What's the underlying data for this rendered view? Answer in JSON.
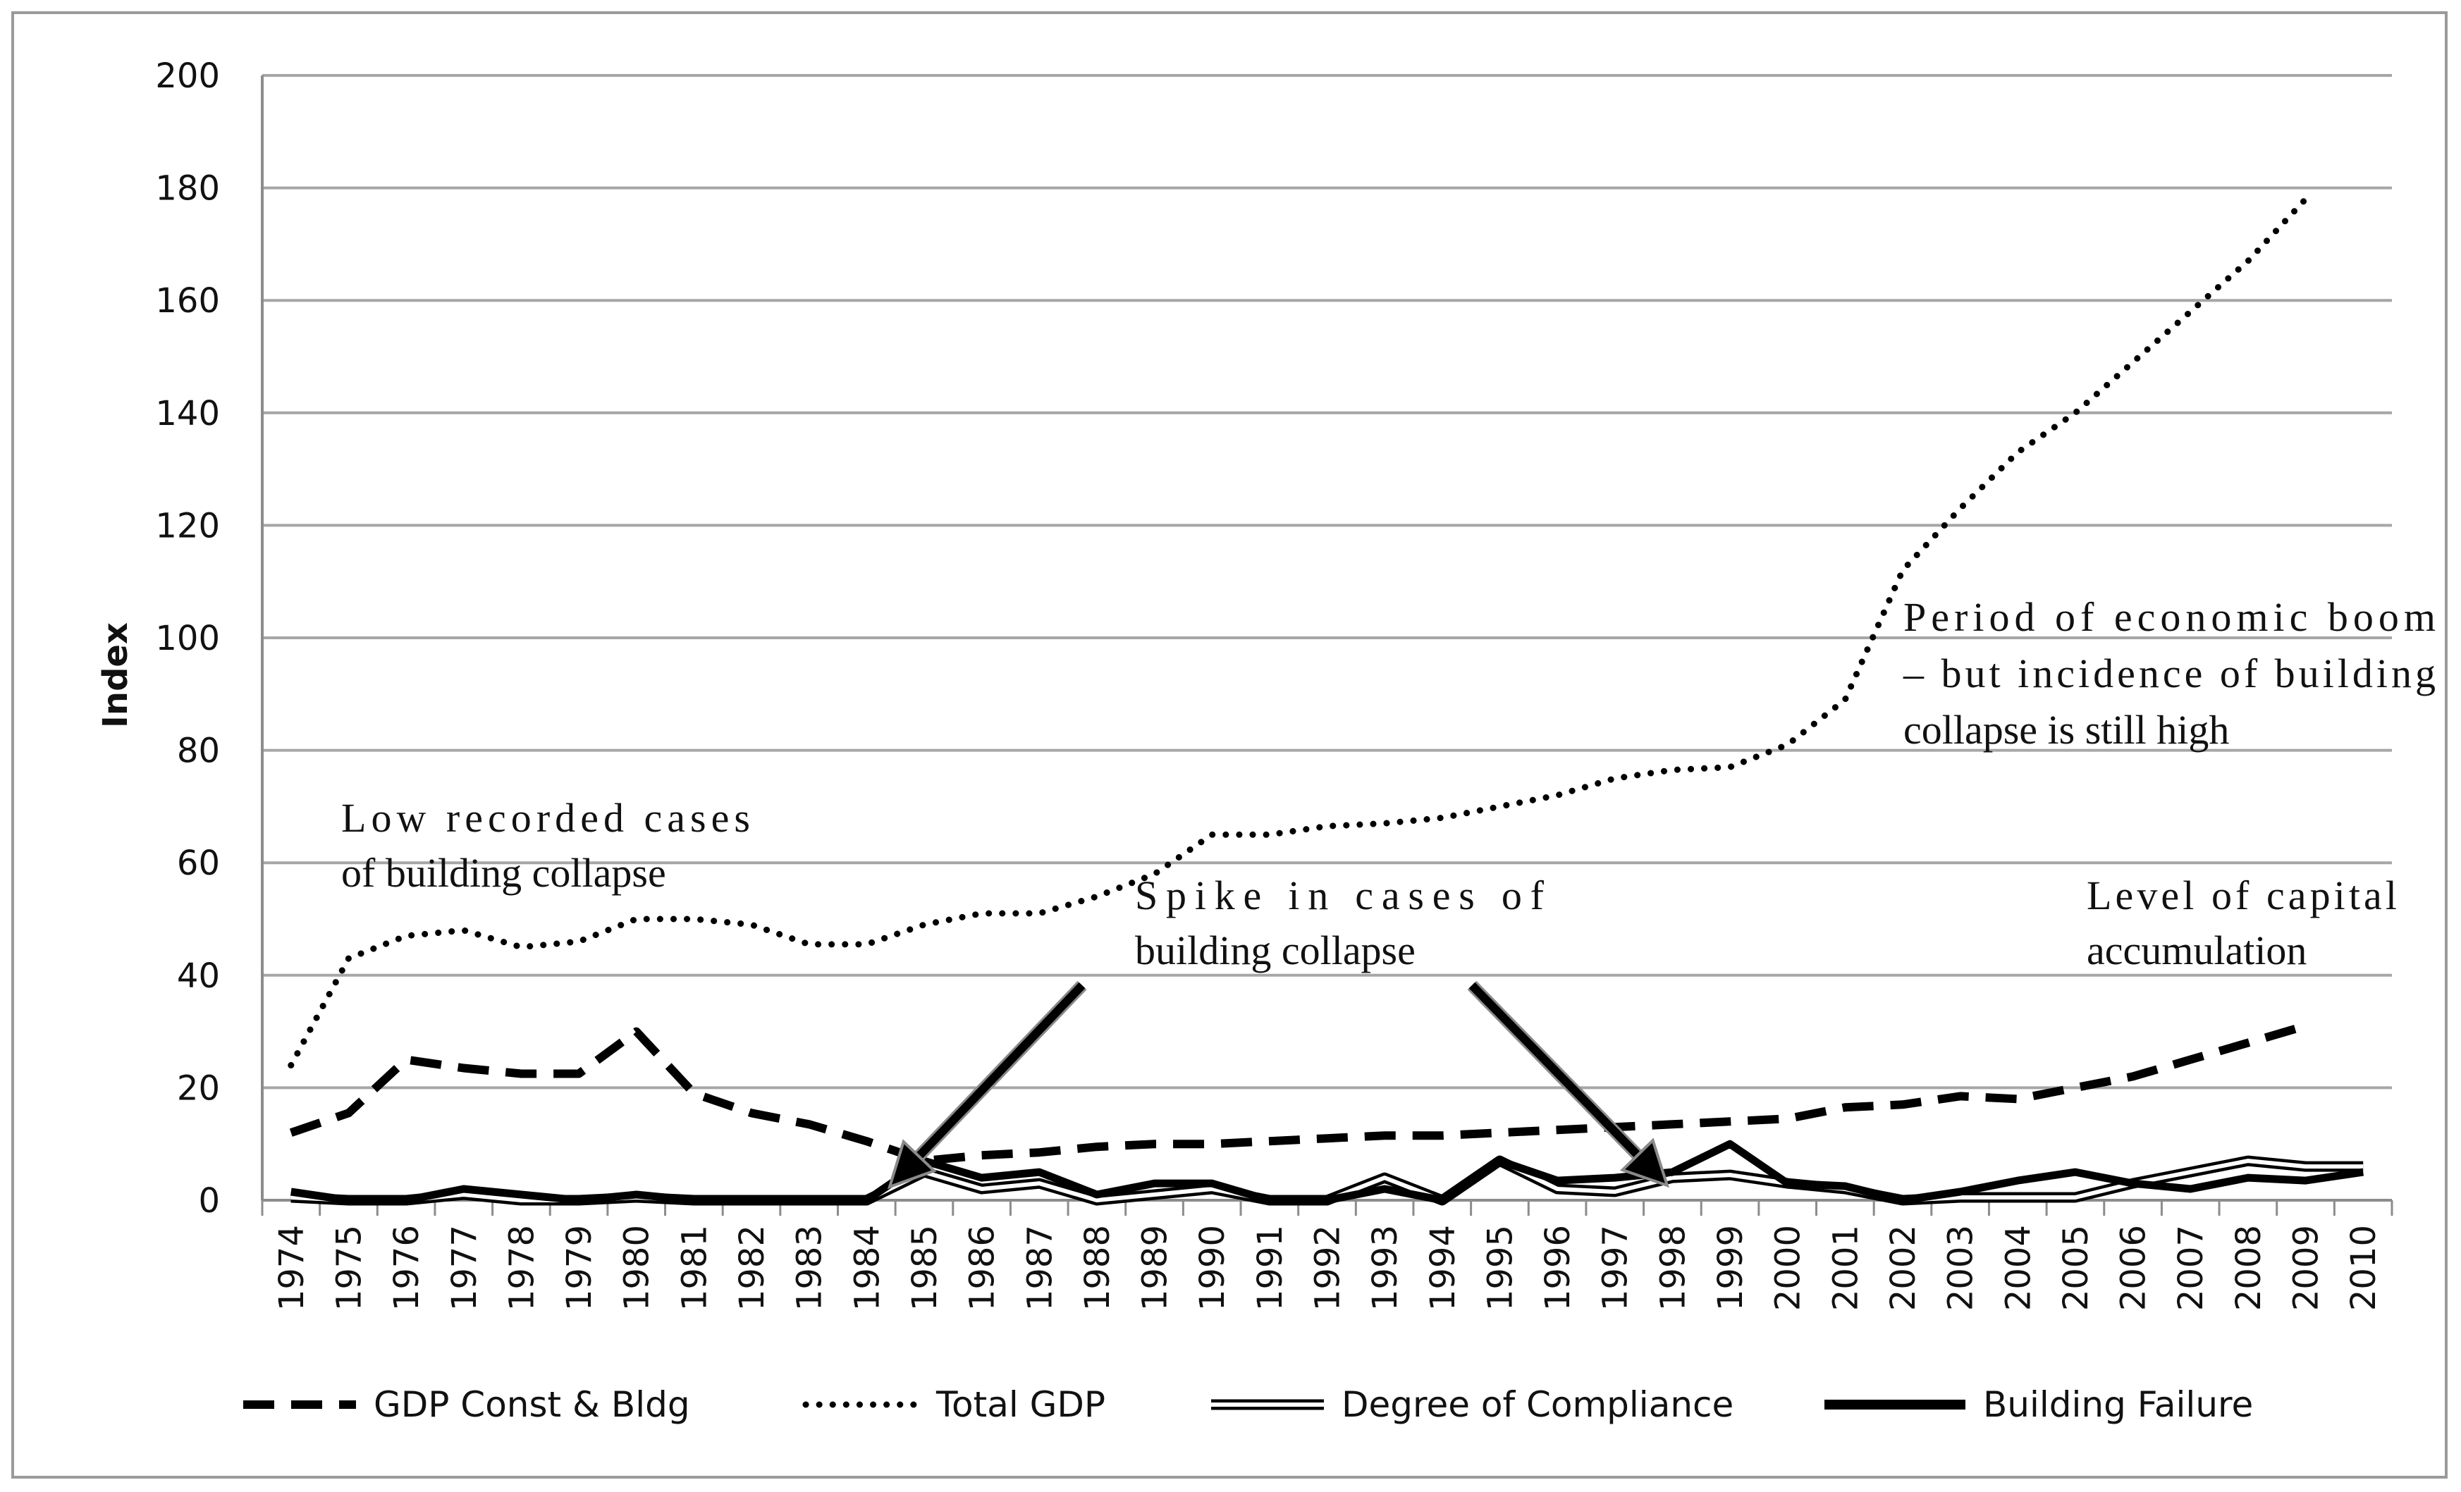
{
  "chart_data": {
    "type": "line",
    "title": "",
    "xlabel": "",
    "ylabel": "Index",
    "ylim": [
      0,
      200
    ],
    "yticks": [
      0,
      20,
      40,
      60,
      80,
      100,
      120,
      140,
      160,
      180,
      200
    ],
    "grid": true,
    "categories": [
      "1974",
      "1975",
      "1976",
      "1977",
      "1978",
      "1979",
      "1980",
      "1981",
      "1982",
      "1983",
      "1984",
      "1985",
      "1986",
      "1987",
      "1988",
      "1989",
      "1990",
      "1991",
      "1992",
      "1993",
      "1994",
      "1995",
      "1996",
      "1997",
      "1998",
      "1999",
      "2000",
      "2001",
      "2002",
      "2003",
      "2004",
      "2005",
      "2006",
      "2007",
      "2008",
      "2009",
      "2010"
    ],
    "series": [
      {
        "name": "GDP Const & Bldg",
        "style": "dashed",
        "values": [
          12,
          15.5,
          25,
          23.5,
          22.5,
          22.5,
          30,
          19,
          15.5,
          13.5,
          10.5,
          7,
          8,
          8.5,
          9.5,
          10,
          10,
          10.5,
          11,
          11.5,
          11.5,
          12,
          12.5,
          13,
          13.5,
          14,
          14.5,
          16.5,
          17,
          18.5,
          18,
          20,
          22,
          25,
          28,
          31,
          null
        ]
      },
      {
        "name": "Total GDP",
        "style": "dotted",
        "values": [
          24,
          43,
          47,
          48,
          45,
          46,
          50,
          50,
          49,
          45.5,
          45.5,
          49,
          51,
          51,
          54,
          58,
          65,
          65,
          66.5,
          67,
          68,
          70,
          72,
          75,
          76.5,
          77,
          81,
          89,
          112,
          123,
          133,
          140,
          149,
          158,
          167,
          178,
          null
        ]
      },
      {
        "name": "Degree of Compliance",
        "style": "double",
        "values": [
          0.5,
          0,
          0,
          1,
          0,
          0,
          0.5,
          0,
          0,
          0,
          0,
          5,
          2,
          3,
          0,
          1,
          2,
          0,
          0,
          4,
          0,
          7,
          2,
          1.5,
          4,
          4.5,
          3,
          2,
          0,
          0.5,
          0.5,
          0.5,
          3,
          5,
          7,
          6,
          6
        ]
      },
      {
        "name": "Building Failure",
        "style": "thick",
        "values": [
          1.5,
          0,
          0,
          2,
          1,
          0,
          1,
          0,
          0,
          0,
          0,
          7,
          4,
          5,
          1,
          3,
          3,
          0,
          0,
          2,
          0,
          7,
          3.5,
          4,
          5,
          10,
          3,
          2.5,
          0,
          1.5,
          3.5,
          5,
          3,
          2,
          4,
          3.5,
          5
        ]
      }
    ],
    "annotations": [
      {
        "id": "low-cases",
        "lines": [
          "Low recorded cases",
          "of building collapse"
        ]
      },
      {
        "id": "spike",
        "lines": [
          "Spike in cases of",
          "building collapse"
        ]
      },
      {
        "id": "boom",
        "lines": [
          "Period of economic boom",
          "– but incidence of building",
          "collapse is still high"
        ]
      },
      {
        "id": "capital",
        "lines": [
          "Level of capital",
          "accumulation"
        ]
      }
    ],
    "legend_position": "bottom"
  },
  "colors": {
    "line": "#000000",
    "grid": "#a6a6a6",
    "frame": "#9a9a9a",
    "arrow_outline": "#8a8a8a"
  }
}
